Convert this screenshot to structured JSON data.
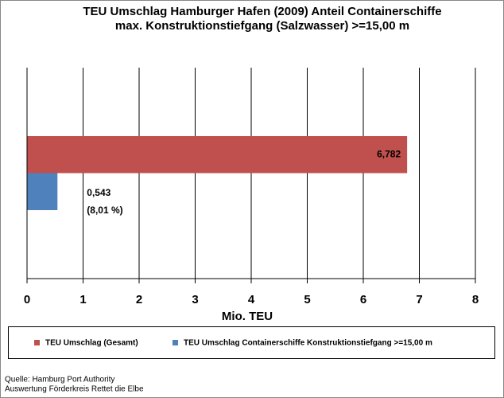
{
  "chart_data": {
    "type": "bar",
    "orientation": "horizontal",
    "title": [
      "TEU Umschlag Hamburger Hafen (2009)  Anteil Containerschiffe",
      "max. Konstruktionstiefgang (Salzwasser) >=15,00 m"
    ],
    "categories": [
      null
    ],
    "series": [
      {
        "name": "TEU Umschlag (Gesamt)",
        "color": "#c0504d",
        "values": [
          6.782
        ],
        "value_labels": [
          "6,782"
        ]
      },
      {
        "name": "TEU Umschlag Containerschiffe Konstruktionstiefgang >=15,00 m",
        "color": "#4f81bd",
        "values": [
          0.543
        ],
        "value_labels": [
          "0,543"
        ],
        "annotations": [
          "(8,01 %)"
        ]
      }
    ],
    "x_label": "Mio. TEU",
    "xlim": [
      0,
      8
    ],
    "xticks": [
      0,
      1,
      2,
      3,
      4,
      5,
      6,
      7,
      8
    ],
    "grid": true,
    "legend": "bottom",
    "notes": [
      "Quelle: Hamburg Port Authority",
      "Auswertung Förderkreis Rettet die Elbe"
    ]
  }
}
